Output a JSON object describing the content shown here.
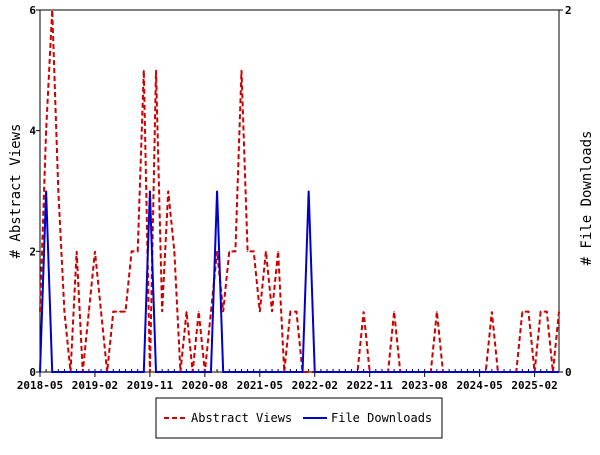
{
  "chart_data": {
    "type": "line",
    "x_ticks": [
      "2018-05",
      "2019-02",
      "2019-11",
      "2020-08",
      "2021-05",
      "2022-02",
      "2022-11",
      "2023-08",
      "2024-05",
      "2025-02"
    ],
    "ylabel_left": "# Abstract Views",
    "ylabel_right": "# File Downloads",
    "ylim_left": [
      0,
      6
    ],
    "ylim_right": [
      0,
      2
    ],
    "y_ticks_left": [
      "0",
      "2",
      "4",
      "6"
    ],
    "y_ticks_right": [
      "0",
      "2"
    ],
    "legend_position": "bottom",
    "x": [
      "2018-05",
      "2018-06",
      "2018-07",
      "2018-08",
      "2018-09",
      "2018-10",
      "2018-11",
      "2018-12",
      "2019-01",
      "2019-02",
      "2019-03",
      "2019-04",
      "2019-05",
      "2019-06",
      "2019-07",
      "2019-08",
      "2019-09",
      "2019-10",
      "2019-11",
      "2019-12",
      "2020-01",
      "2020-02",
      "2020-03",
      "2020-04",
      "2020-05",
      "2020-06",
      "2020-07",
      "2020-08",
      "2020-09",
      "2020-10",
      "2020-11",
      "2020-12",
      "2021-01",
      "2021-02",
      "2021-03",
      "2021-04",
      "2021-05",
      "2021-06",
      "2021-07",
      "2021-08",
      "2021-09",
      "2021-10",
      "2021-11",
      "2021-12",
      "2022-01",
      "2022-02",
      "2022-03",
      "2022-04",
      "2022-05",
      "2022-06",
      "2022-07",
      "2022-08",
      "2022-09",
      "2022-10",
      "2022-11",
      "2022-12",
      "2023-01",
      "2023-02",
      "2023-03",
      "2023-04",
      "2023-05",
      "2023-06",
      "2023-07",
      "2023-08",
      "2023-09",
      "2023-10",
      "2023-11",
      "2023-12",
      "2024-01",
      "2024-02",
      "2024-03",
      "2024-04",
      "2024-05",
      "2024-06",
      "2024-07",
      "2024-08",
      "2024-09",
      "2024-10",
      "2024-11",
      "2024-12",
      "2025-01",
      "2025-02",
      "2025-03",
      "2025-04",
      "2025-05",
      "2025-06"
    ],
    "series": [
      {
        "name": "Abstract Views",
        "axis": "left",
        "color": "#cc0000",
        "dash": "dashed",
        "values": [
          1,
          4,
          6,
          3,
          1,
          0,
          2,
          0,
          1,
          2,
          1,
          0,
          1,
          1,
          1,
          2,
          2,
          5,
          0,
          5,
          1,
          3,
          2,
          0,
          1,
          0,
          1,
          0,
          1,
          2,
          1,
          2,
          2,
          5,
          2,
          2,
          1,
          2,
          1,
          2,
          0,
          1,
          1,
          0,
          0,
          0,
          0,
          0,
          0,
          0,
          0,
          0,
          0,
          1,
          0,
          0,
          0,
          0,
          1,
          0,
          0,
          0,
          0,
          0,
          0,
          1,
          0,
          0,
          0,
          0,
          0,
          0,
          0,
          0,
          1,
          0,
          0,
          0,
          0,
          1,
          1,
          0,
          1,
          1,
          0,
          1
        ]
      },
      {
        "name": "File Downloads",
        "axis": "right",
        "color": "#0000cc",
        "dash": "solid",
        "values": [
          0,
          1,
          0,
          0,
          0,
          0,
          0,
          0,
          0,
          0,
          0,
          0,
          0,
          0,
          0,
          0,
          0,
          0,
          1,
          0,
          0,
          0,
          0,
          0,
          0,
          0,
          0,
          0,
          0,
          1,
          0,
          0,
          0,
          0,
          0,
          0,
          0,
          0,
          0,
          0,
          0,
          0,
          0,
          0,
          1,
          0,
          0,
          0,
          0,
          0,
          0,
          0,
          0,
          0,
          0,
          0,
          0,
          0,
          0,
          0,
          0,
          0,
          0,
          0,
          0,
          0,
          0,
          0,
          0,
          0,
          0,
          0,
          0,
          0,
          0,
          0,
          0,
          0,
          0,
          0,
          0,
          0,
          0,
          0,
          0,
          0
        ]
      }
    ]
  }
}
